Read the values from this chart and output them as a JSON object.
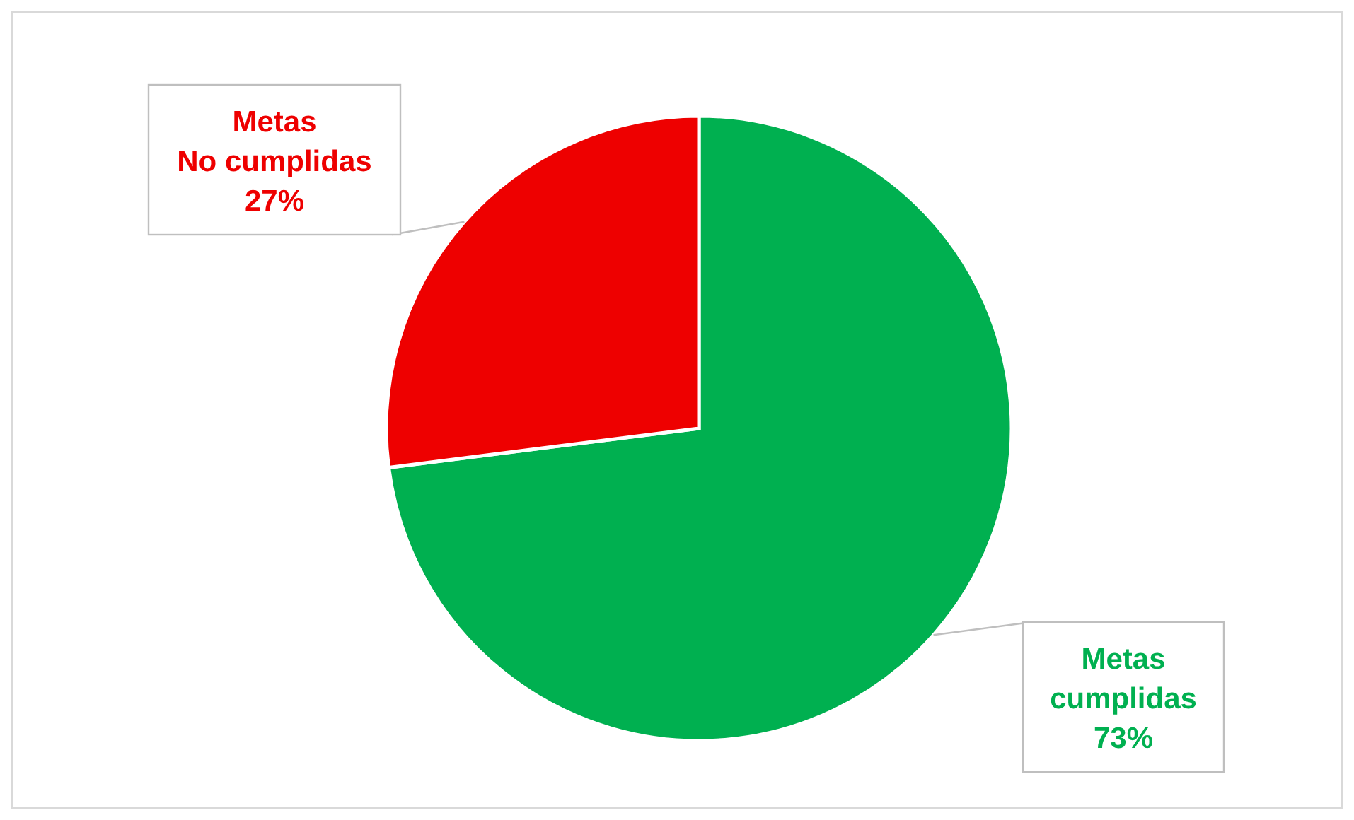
{
  "chart_data": {
    "type": "pie",
    "categories": [
      "Metas cumplidas",
      "Metas No cumplidas"
    ],
    "values": [
      73,
      27
    ],
    "colors": [
      "#00b050",
      "#ee0000"
    ],
    "value_labels": [
      "73%",
      "27%"
    ]
  }
}
